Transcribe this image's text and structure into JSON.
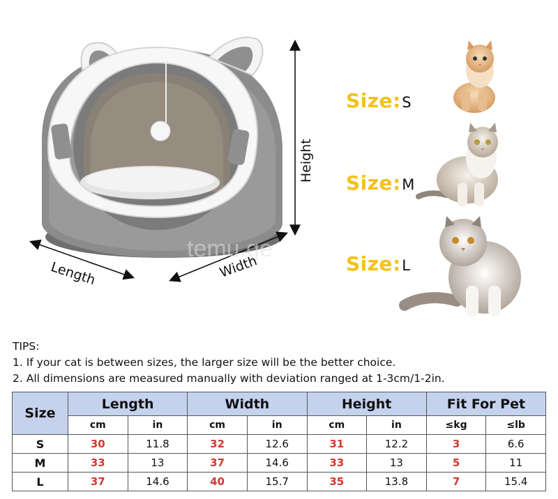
{
  "dimensions": {
    "length_label": "Length",
    "width_label": "Width",
    "height_label": "Height"
  },
  "sizes": [
    {
      "prefix": "Size",
      "colon": ":",
      "value": "S"
    },
    {
      "prefix": "Size",
      "colon": ":",
      "value": "M"
    },
    {
      "prefix": "Size",
      "colon": ":",
      "value": "L"
    }
  ],
  "watermark": "temu.ge",
  "tips": {
    "title": "TIPS:",
    "line1": "1. If your cat is between sizes, the larger size will be the better choice.",
    "line2": "2. All dimensions are measured manually with deviation ranged at 1-3cm/1-2in."
  },
  "table": {
    "size_header": "Size",
    "groups": [
      "Length",
      "Width",
      "Height",
      "Fit For Pet"
    ],
    "units": [
      "cm",
      "in",
      "cm",
      "in",
      "cm",
      "in",
      "≤kg",
      "≤lb"
    ],
    "rows": [
      {
        "label": "S",
        "cells": [
          "30",
          "11.8",
          "32",
          "12.6",
          "31",
          "12.2",
          "3",
          "6.6"
        ]
      },
      {
        "label": "M",
        "cells": [
          "33",
          "13",
          "37",
          "14.6",
          "33",
          "13",
          "5",
          "11"
        ]
      },
      {
        "label": "L",
        "cells": [
          "37",
          "14.6",
          "40",
          "15.7",
          "35",
          "13.8",
          "7",
          "15.4"
        ]
      }
    ]
  },
  "colors": {
    "accent_yellow": "#f3c21a",
    "header_blue": "#c5d2ee",
    "value_red": "#d03a2f"
  }
}
